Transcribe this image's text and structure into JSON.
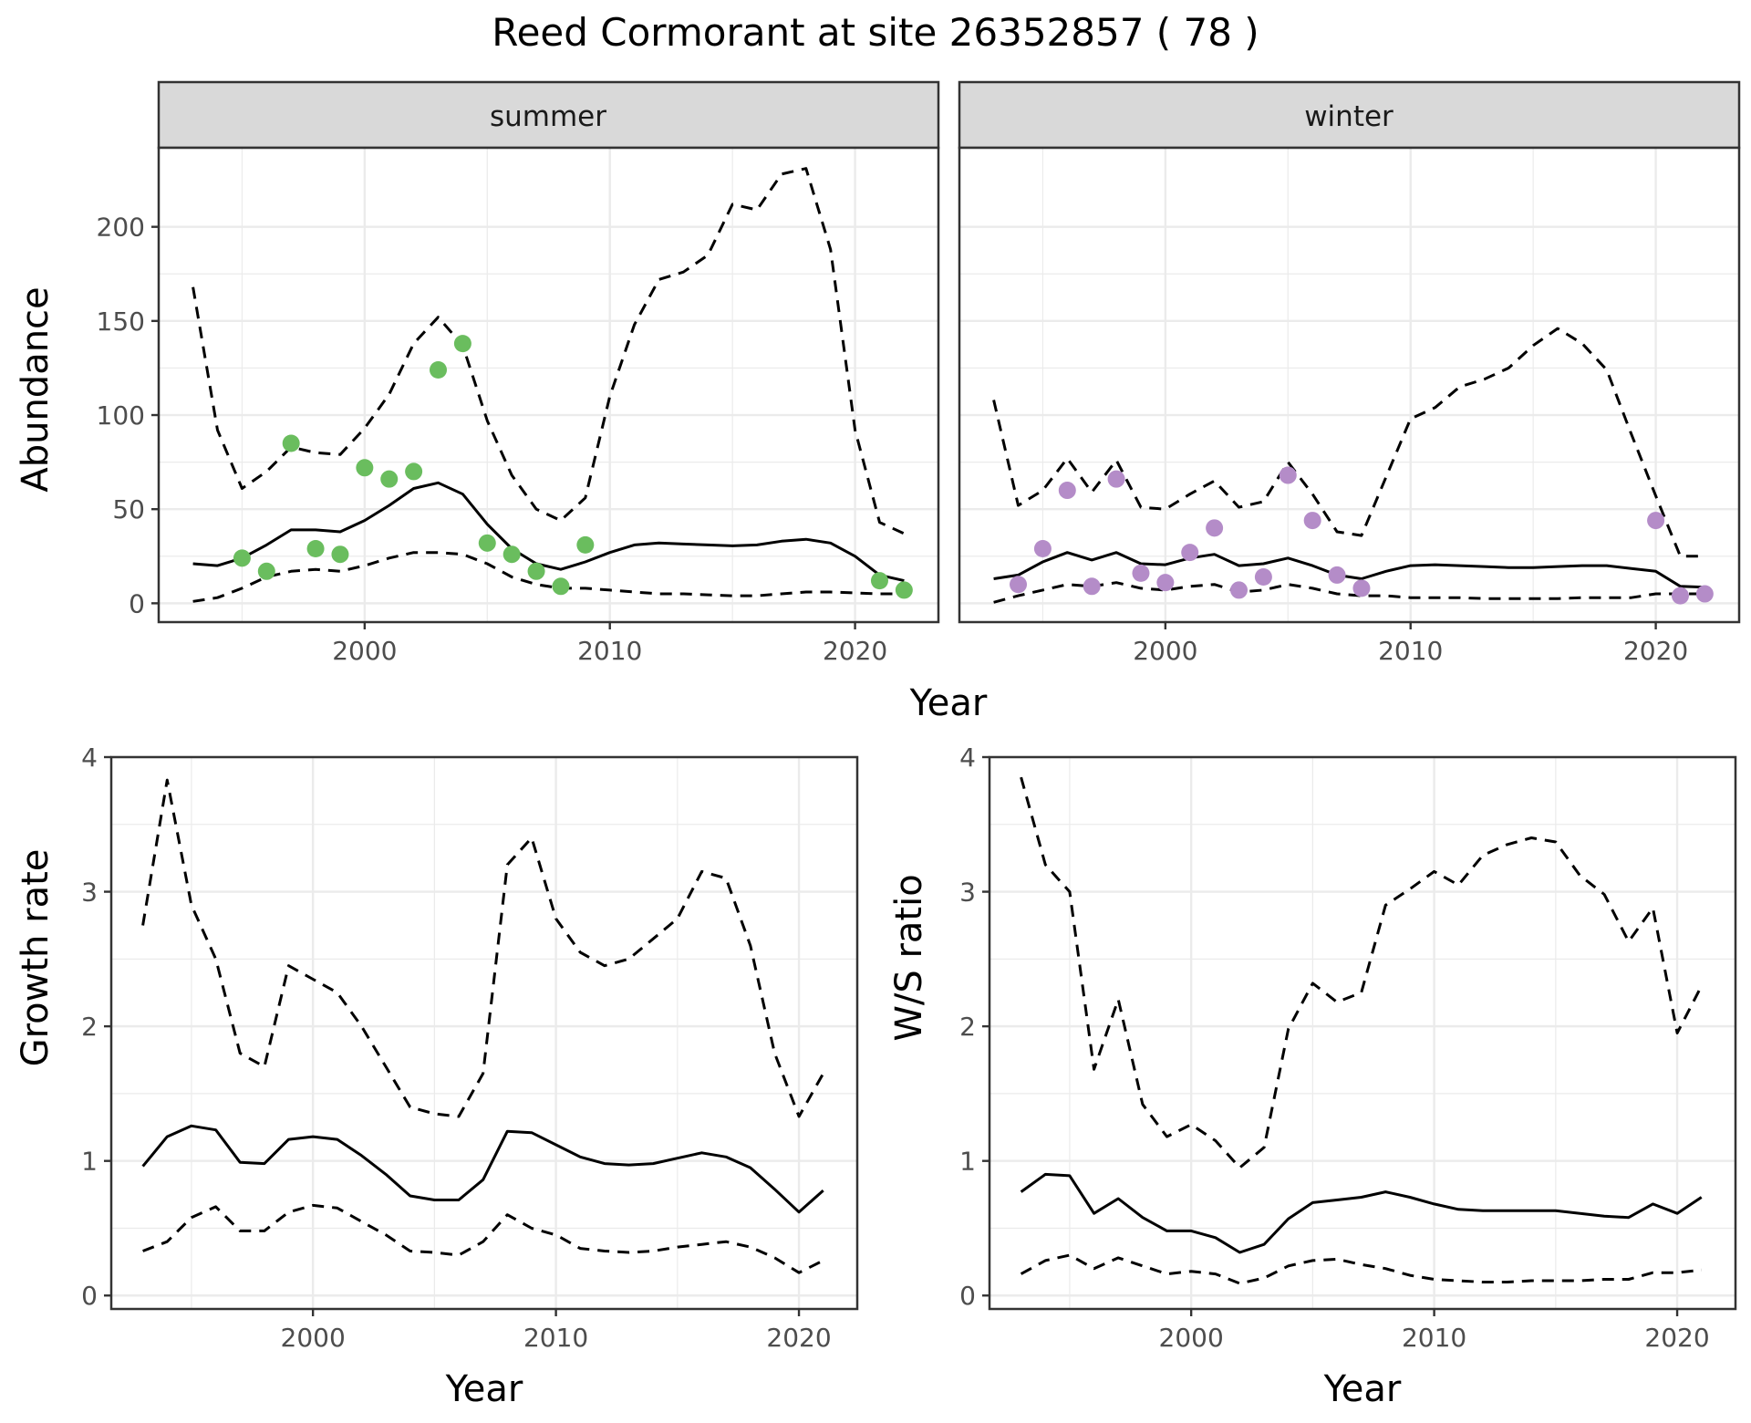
{
  "page": {
    "title": "Reed Cormorant at site 26352857 ( 78 )"
  },
  "colors": {
    "summer_points": "#6ABD5E",
    "winter_points": "#B48CC8",
    "strip_fill": "#D9D9D9",
    "strip_border": "#333333",
    "panel_border": "#333333",
    "grid_major": "#EBEBEB",
    "line": "#000000"
  },
  "chart_data": [
    {
      "type": "line",
      "chart": "abundance",
      "facets": [
        "summer",
        "winter"
      ],
      "xlabel": "Year",
      "ylabel": "Abundance",
      "xlim": [
        1991.6,
        2023.4
      ],
      "ylim": [
        -10,
        242
      ],
      "xticks": [
        2000,
        2010,
        2020
      ],
      "yticks": [
        0,
        50,
        100,
        150,
        200
      ],
      "grid": true,
      "panels": [
        {
          "facet": "summer",
          "observed_points": {
            "x": [
              1995,
              1996,
              1997,
              1998,
              1999,
              2000,
              2001,
              2002,
              2003,
              2004,
              2005,
              2006,
              2007,
              2008,
              2009,
              2021,
              2022
            ],
            "y": [
              24,
              17,
              85,
              29,
              26,
              72,
              66,
              70,
              124,
              138,
              32,
              26,
              17,
              9,
              31,
              12,
              7
            ]
          },
          "series": [
            {
              "style": "solid",
              "x": [
                1993,
                1994,
                1995,
                1996,
                1997,
                1998,
                1999,
                2000,
                2001,
                2002,
                2003,
                2004,
                2005,
                2006,
                2007,
                2008,
                2009,
                2010,
                2011,
                2012,
                2013,
                2014,
                2015,
                2016,
                2017,
                2018,
                2019,
                2020,
                2021,
                2022
              ],
              "y": [
                21,
                20,
                24,
                31,
                39,
                39,
                38,
                44,
                52,
                61,
                64,
                58,
                42,
                29,
                21,
                18,
                22,
                27,
                31,
                32,
                31.5,
                31,
                30.5,
                31,
                33,
                34,
                32,
                25,
                15,
                12
              ]
            },
            {
              "style": "dashed",
              "x": [
                1993,
                1994,
                1995,
                1996,
                1997,
                1998,
                1999,
                2000,
                2001,
                2002,
                2003,
                2004,
                2005,
                2006,
                2007,
                2008,
                2009,
                2010,
                2011,
                2012,
                2013,
                2014,
                2015,
                2016,
                2017,
                2018,
                2019,
                2020,
                2021,
                2022
              ],
              "y": [
                1,
                3,
                8,
                14,
                17,
                18,
                17,
                20,
                24,
                27,
                27,
                26,
                21,
                14,
                10,
                8,
                8,
                7,
                6,
                5,
                5,
                4.5,
                4,
                4,
                5,
                6,
                6,
                5.5,
                5,
                5
              ]
            },
            {
              "style": "dashed",
              "x": [
                1993,
                1994,
                1995,
                1996,
                1997,
                1998,
                1999,
                2000,
                2001,
                2002,
                2003,
                2004,
                2005,
                2006,
                2007,
                2008,
                2009,
                2010,
                2011,
                2012,
                2013,
                2014,
                2015,
                2016,
                2017,
                2018,
                2019,
                2020,
                2021,
                2022
              ],
              "y": [
                168,
                92,
                61,
                70,
                83,
                80,
                79,
                93,
                111,
                138,
                152,
                137,
                97,
                68,
                50,
                44,
                56,
                110,
                148,
                172,
                176,
                185,
                212,
                209,
                228,
                231,
                188,
                92,
                43,
                37
              ]
            }
          ]
        },
        {
          "facet": "winter",
          "observed_points": {
            "x": [
              1994,
              1995,
              1996,
              1997,
              1998,
              1999,
              2000,
              2001,
              2002,
              2003,
              2004,
              2005,
              2006,
              2007,
              2008,
              2020,
              2021,
              2022
            ],
            "y": [
              10,
              29,
              60,
              9,
              66,
              16,
              11,
              27,
              40,
              7,
              14,
              68,
              44,
              15,
              8,
              44,
              4,
              5
            ]
          },
          "series": [
            {
              "style": "solid",
              "x": [
                1993,
                1994,
                1995,
                1996,
                1997,
                1998,
                1999,
                2000,
                2001,
                2002,
                2003,
                2004,
                2005,
                2006,
                2007,
                2008,
                2009,
                2010,
                2011,
                2012,
                2013,
                2014,
                2015,
                2016,
                2017,
                2018,
                2019,
                2020,
                2021,
                2022
              ],
              "y": [
                13,
                15,
                22,
                27,
                23,
                27,
                21,
                20.5,
                24,
                26,
                20,
                21,
                24,
                20,
                15,
                13,
                17,
                20,
                20.5,
                20,
                19.5,
                19,
                19,
                19.5,
                20,
                20,
                18.5,
                17,
                9,
                8.5
              ]
            },
            {
              "style": "dashed",
              "x": [
                1993,
                1994,
                1995,
                1996,
                1997,
                1998,
                1999,
                2000,
                2001,
                2002,
                2003,
                2004,
                2005,
                2006,
                2007,
                2008,
                2009,
                2010,
                2011,
                2012,
                2013,
                2014,
                2015,
                2016,
                2017,
                2018,
                2019,
                2020,
                2021,
                2022
              ],
              "y": [
                0.5,
                4,
                7,
                10,
                9,
                11,
                8,
                7,
                9,
                10,
                6,
                7,
                10,
                8,
                5,
                4,
                4,
                3,
                3,
                3,
                2.5,
                2.5,
                2.5,
                2.5,
                3,
                3,
                3,
                5,
                5,
                5
              ]
            },
            {
              "style": "dashed",
              "x": [
                1993,
                1994,
                1995,
                1996,
                1997,
                1998,
                1999,
                2000,
                2001,
                2002,
                2003,
                2004,
                2005,
                2006,
                2007,
                2008,
                2009,
                2010,
                2011,
                2012,
                2013,
                2014,
                2015,
                2016,
                2017,
                2018,
                2019,
                2020,
                2021,
                2022
              ],
              "y": [
                108,
                52,
                60,
                77,
                59,
                76,
                51,
                50,
                58,
                65,
                51,
                54,
                75,
                58,
                38,
                36,
                67,
                98,
                104,
                115,
                119,
                125,
                137,
                146,
                138,
                124,
                90,
                57,
                25,
                25
              ]
            }
          ]
        }
      ]
    },
    {
      "type": "line",
      "chart": "growth-rate",
      "xlabel": "Year",
      "ylabel": "Growth rate",
      "xlim": [
        1991.7,
        2022.4
      ],
      "ylim": [
        -0.1,
        4.0
      ],
      "xticks": [
        2000,
        2010,
        2020
      ],
      "yticks": [
        0,
        1,
        2,
        3,
        4
      ],
      "grid": true,
      "series": [
        {
          "style": "solid",
          "x": [
            1993,
            1994,
            1995,
            1996,
            1997,
            1998,
            1999,
            2000,
            2001,
            2002,
            2003,
            2004,
            2005,
            2006,
            2007,
            2008,
            2009,
            2010,
            2011,
            2012,
            2013,
            2014,
            2015,
            2016,
            2017,
            2018,
            2019,
            2020,
            2021
          ],
          "y": [
            0.96,
            1.18,
            1.26,
            1.23,
            0.99,
            0.98,
            1.16,
            1.18,
            1.16,
            1.04,
            0.9,
            0.74,
            0.71,
            0.71,
            0.86,
            1.22,
            1.21,
            1.12,
            1.03,
            0.98,
            0.97,
            0.98,
            1.02,
            1.06,
            1.03,
            0.95,
            0.79,
            0.62,
            0.78
          ]
        },
        {
          "style": "dashed",
          "x": [
            1993,
            1994,
            1995,
            1996,
            1997,
            1998,
            1999,
            2000,
            2001,
            2002,
            2003,
            2004,
            2005,
            2006,
            2007,
            2008,
            2009,
            2010,
            2011,
            2012,
            2013,
            2014,
            2015,
            2016,
            2017,
            2018,
            2019,
            2020,
            2021
          ],
          "y": [
            0.33,
            0.4,
            0.58,
            0.66,
            0.48,
            0.48,
            0.62,
            0.67,
            0.65,
            0.55,
            0.45,
            0.33,
            0.32,
            0.3,
            0.4,
            0.6,
            0.5,
            0.45,
            0.35,
            0.33,
            0.32,
            0.33,
            0.36,
            0.38,
            0.4,
            0.36,
            0.28,
            0.17,
            0.26
          ]
        },
        {
          "style": "dashed",
          "x": [
            1993,
            1994,
            1995,
            1996,
            1997,
            1998,
            1999,
            2000,
            2001,
            2002,
            2003,
            2004,
            2005,
            2006,
            2007,
            2008,
            2009,
            2010,
            2011,
            2012,
            2013,
            2014,
            2015,
            2016,
            2017,
            2018,
            2019,
            2020,
            2021
          ],
          "y": [
            2.75,
            3.83,
            2.9,
            2.5,
            1.8,
            1.7,
            2.45,
            2.35,
            2.25,
            2.0,
            1.7,
            1.4,
            1.35,
            1.33,
            1.65,
            3.2,
            3.4,
            2.8,
            2.55,
            2.45,
            2.5,
            2.65,
            2.8,
            3.15,
            3.1,
            2.6,
            1.8,
            1.33,
            1.65
          ]
        }
      ]
    },
    {
      "type": "line",
      "chart": "ws-ratio",
      "xlabel": "Year",
      "ylabel": "W/S ratio",
      "xlim": [
        1991.7,
        2022.4
      ],
      "ylim": [
        -0.1,
        4.0
      ],
      "xticks": [
        2000,
        2010,
        2020
      ],
      "yticks": [
        0,
        1,
        2,
        3,
        4
      ],
      "grid": true,
      "series": [
        {
          "style": "solid",
          "x": [
            1993,
            1994,
            1995,
            1996,
            1997,
            1998,
            1999,
            2000,
            2001,
            2002,
            2003,
            2004,
            2005,
            2006,
            2007,
            2008,
            2009,
            2010,
            2011,
            2012,
            2013,
            2014,
            2015,
            2016,
            2017,
            2018,
            2019,
            2020,
            2021
          ],
          "y": [
            0.77,
            0.9,
            0.89,
            0.61,
            0.72,
            0.58,
            0.48,
            0.48,
            0.43,
            0.32,
            0.38,
            0.57,
            0.69,
            0.71,
            0.73,
            0.77,
            0.73,
            0.68,
            0.64,
            0.63,
            0.63,
            0.63,
            0.63,
            0.61,
            0.59,
            0.58,
            0.68,
            0.61,
            0.73
          ]
        },
        {
          "style": "dashed",
          "x": [
            1993,
            1994,
            1995,
            1996,
            1997,
            1998,
            1999,
            2000,
            2001,
            2002,
            2003,
            2004,
            2005,
            2006,
            2007,
            2008,
            2009,
            2010,
            2011,
            2012,
            2013,
            2014,
            2015,
            2016,
            2017,
            2018,
            2019,
            2020,
            2021
          ],
          "y": [
            0.16,
            0.26,
            0.3,
            0.2,
            0.28,
            0.22,
            0.16,
            0.18,
            0.16,
            0.09,
            0.13,
            0.22,
            0.26,
            0.27,
            0.23,
            0.2,
            0.15,
            0.12,
            0.11,
            0.1,
            0.1,
            0.11,
            0.11,
            0.11,
            0.12,
            0.12,
            0.17,
            0.17,
            0.19
          ]
        },
        {
          "style": "dashed",
          "x": [
            1993,
            1994,
            1995,
            1996,
            1997,
            1998,
            1999,
            2000,
            2001,
            2002,
            2003,
            2004,
            2005,
            2006,
            2007,
            2008,
            2009,
            2010,
            2011,
            2012,
            2013,
            2014,
            2015,
            2016,
            2017,
            2018,
            2019,
            2020,
            2021
          ],
          "y": [
            3.85,
            3.2,
            3.0,
            1.68,
            2.2,
            1.42,
            1.18,
            1.27,
            1.15,
            0.95,
            1.1,
            1.98,
            2.32,
            2.18,
            2.25,
            2.9,
            3.02,
            3.15,
            3.05,
            3.27,
            3.35,
            3.4,
            3.37,
            3.12,
            2.98,
            2.63,
            2.88,
            1.95,
            2.3
          ]
        }
      ]
    }
  ]
}
